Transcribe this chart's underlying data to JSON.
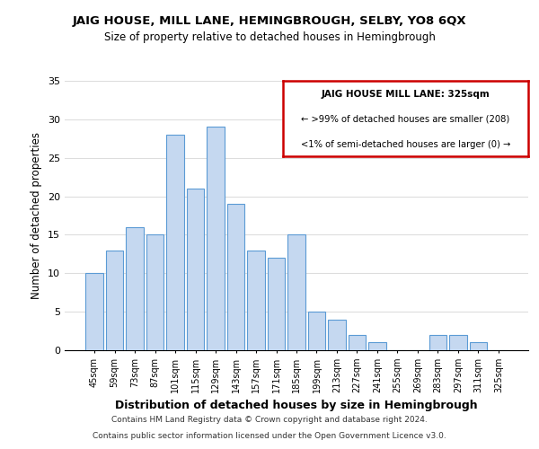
{
  "title": "JAIG HOUSE, MILL LANE, HEMINGBROUGH, SELBY, YO8 6QX",
  "subtitle": "Size of property relative to detached houses in Hemingbrough",
  "xlabel": "Distribution of detached houses by size in Hemingbrough",
  "ylabel": "Number of detached properties",
  "bar_color": "#c5d8f0",
  "bar_edge_color": "#5b9bd5",
  "categories": [
    "45sqm",
    "59sqm",
    "73sqm",
    "87sqm",
    "101sqm",
    "115sqm",
    "129sqm",
    "143sqm",
    "157sqm",
    "171sqm",
    "185sqm",
    "199sqm",
    "213sqm",
    "227sqm",
    "241sqm",
    "255sqm",
    "269sqm",
    "283sqm",
    "297sqm",
    "311sqm",
    "325sqm"
  ],
  "values": [
    10,
    13,
    16,
    15,
    28,
    21,
    29,
    19,
    13,
    12,
    15,
    5,
    4,
    2,
    1,
    0,
    0,
    2,
    2,
    1,
    0
  ],
  "ylim": [
    0,
    35
  ],
  "yticks": [
    0,
    5,
    10,
    15,
    20,
    25,
    30,
    35
  ],
  "legend_title": "JAIG HOUSE MILL LANE: 325sqm",
  "legend_line1": "← >99% of detached houses are smaller (208)",
  "legend_line2": "<1% of semi-detached houses are larger (0) →",
  "legend_box_color": "#ffffff",
  "legend_border_color": "#cc0000",
  "footer_line1": "Contains HM Land Registry data © Crown copyright and database right 2024.",
  "footer_line2": "Contains public sector information licensed under the Open Government Licence v3.0.",
  "grid_color": "#dddddd",
  "background_color": "#ffffff"
}
